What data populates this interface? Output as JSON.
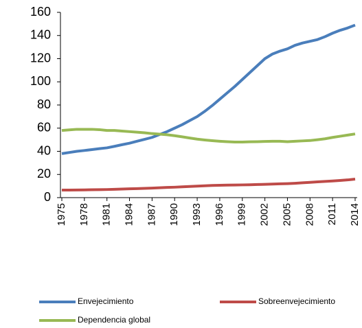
{
  "chart_data": {
    "type": "line",
    "x": [
      1975,
      1976,
      1977,
      1978,
      1979,
      1980,
      1981,
      1982,
      1983,
      1984,
      1985,
      1986,
      1987,
      1988,
      1989,
      1990,
      1991,
      1992,
      1993,
      1994,
      1995,
      1996,
      1997,
      1998,
      1999,
      2000,
      2001,
      2002,
      2003,
      2004,
      2005,
      2006,
      2007,
      2008,
      2009,
      2010,
      2011,
      2012,
      2013,
      2014
    ],
    "series": [
      {
        "name": "Envejecimiento",
        "color": "#4a7ebb",
        "values": [
          38,
          39,
          40,
          40.7,
          41.5,
          42.3,
          43,
          44.3,
          45.7,
          47,
          48.7,
          50.3,
          52,
          54.5,
          57,
          60,
          63,
          66.5,
          70,
          74.5,
          79.5,
          85,
          90.5,
          96,
          102,
          108,
          114,
          120,
          124,
          126.5,
          128.5,
          131.5,
          133.5,
          135,
          136.5,
          139,
          142,
          144.5,
          146.5,
          149
        ]
      },
      {
        "name": "Sobreenvejecimiento",
        "color": "#be4b48",
        "values": [
          6.5,
          6.5,
          6.6,
          6.7,
          6.8,
          6.9,
          7.0,
          7.2,
          7.4,
          7.6,
          7.8,
          8.0,
          8.2,
          8.5,
          8.8,
          9.0,
          9.3,
          9.6,
          9.9,
          10.2,
          10.5,
          10.7,
          10.8,
          10.9,
          11.0,
          11.1,
          11.3,
          11.5,
          11.7,
          11.9,
          12.1,
          12.4,
          12.8,
          13.2,
          13.6,
          14.0,
          14.4,
          14.8,
          15.3,
          16.0
        ]
      },
      {
        "name": "Dependencia global",
        "color": "#98b954",
        "values": [
          58,
          58.5,
          59,
          59,
          59,
          58.7,
          58,
          58,
          57.5,
          57,
          56.5,
          56,
          55.3,
          54.8,
          54.3,
          53.5,
          52.5,
          51.5,
          50.5,
          49.8,
          49.2,
          48.7,
          48.3,
          48,
          48,
          48.2,
          48.3,
          48.5,
          48.7,
          48.7,
          48.3,
          48.7,
          49,
          49.3,
          50,
          50.8,
          52,
          53,
          54,
          55
        ]
      }
    ],
    "xlim": [
      1975,
      2014
    ],
    "xticks": [
      1975,
      1978,
      1981,
      1984,
      1987,
      1990,
      1993,
      1996,
      1999,
      2002,
      2005,
      2008,
      2011,
      2014
    ],
    "ylim": [
      0,
      160
    ],
    "yticks": [
      0,
      20,
      40,
      60,
      80,
      100,
      120,
      140,
      160
    ],
    "grid": false
  }
}
